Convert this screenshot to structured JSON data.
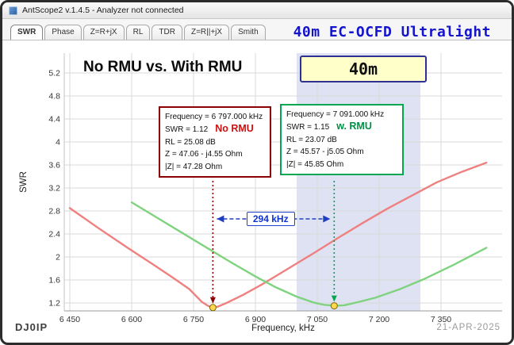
{
  "window": {
    "title_bar": {
      "title": "AntScope2 v.1.4.5 - Analyzer not connected",
      "icon": "antscope-app-icon"
    },
    "footer": {
      "left": "DJ0IP",
      "right": "21-APR-2025"
    }
  },
  "tabs": {
    "items": [
      {
        "label": "SWR",
        "active": true
      },
      {
        "label": "Phase",
        "active": false
      },
      {
        "label": "Z=R+jX",
        "active": false
      },
      {
        "label": "RL",
        "active": false
      },
      {
        "label": "TDR",
        "active": false
      },
      {
        "label": "Z=R||+jX",
        "active": false
      },
      {
        "label": "Smith",
        "active": false
      }
    ]
  },
  "header": {
    "title": "40m EC-OCFD Ultralight",
    "color": "#1414cc"
  },
  "overlay": {
    "headline": "No RMU vs. With RMU",
    "marker_boxes": [
      {
        "name": "no-rmu",
        "accent": "#8b0000",
        "tag": "No RMU",
        "tag_color": "#cc1111",
        "frequency": "Frequency = 6 797.000 kHz",
        "swr": "SWR = 1.12",
        "rl": "RL = 25.08 dB",
        "z": "Z = 47.06 - j4.55 Ohm",
        "zmag": "|Z| = 47.28 Ohm"
      },
      {
        "name": "w-rmu",
        "accent": "#00a651",
        "tag": "w. RMU",
        "tag_color": "#009045",
        "frequency": "Frequency = 7 091.000 kHz",
        "swr": "SWR = 1.15",
        "rl": "RL = 23.07 dB",
        "z": "Z = 45.57 - j5.05 Ohm",
        "zmag": "|Z| = 45.85 Ohm"
      }
    ]
  },
  "chart_data": {
    "type": "line",
    "title": "40m EC-OCFD Ultralight",
    "xlabel": "Frequency, kHz",
    "ylabel": "SWR",
    "xlim": [
      6400,
      7480
    ],
    "ylim": [
      1.0,
      5.5
    ],
    "grid": true,
    "x_ticks": [
      6450,
      6600,
      6750,
      6900,
      7050,
      7200,
      7350
    ],
    "x_tick_labels": [
      "6 450",
      "6 600",
      "6 750",
      "6 900",
      "7 050",
      "7 200",
      "7 350"
    ],
    "y_ticks": [
      1.2,
      1.6,
      2.0,
      2.4,
      2.8,
      3.2,
      3.6,
      4.0,
      4.4,
      4.8,
      5.2
    ],
    "y_tick_labels": [
      "1.2",
      "1.6",
      "2",
      "2.4",
      "2.8",
      "3.2",
      "3.6",
      "4",
      "4.4",
      "4.8",
      "5.2"
    ],
    "band": {
      "from_khz": 7000,
      "to_khz": 7300,
      "color": "#dfe2f2",
      "label": "40m"
    },
    "series": [
      {
        "name": "No RMU",
        "color": "#ef8080",
        "min_marker": {
          "freq_khz": 6797,
          "swr": 1.12
        },
        "points": [
          [
            6450,
            2.85
          ],
          [
            6520,
            2.5
          ],
          [
            6590,
            2.16
          ],
          [
            6650,
            1.88
          ],
          [
            6700,
            1.64
          ],
          [
            6740,
            1.44
          ],
          [
            6770,
            1.22
          ],
          [
            6785,
            1.15
          ],
          [
            6797,
            1.12
          ],
          [
            6810,
            1.14
          ],
          [
            6830,
            1.2
          ],
          [
            6870,
            1.34
          ],
          [
            6920,
            1.54
          ],
          [
            6980,
            1.8
          ],
          [
            7040,
            2.06
          ],
          [
            7100,
            2.33
          ],
          [
            7160,
            2.59
          ],
          [
            7220,
            2.84
          ],
          [
            7280,
            3.07
          ],
          [
            7340,
            3.3
          ],
          [
            7400,
            3.48
          ],
          [
            7460,
            3.64
          ]
        ]
      },
      {
        "name": "w. RMU",
        "color": "#7fd37f",
        "min_marker": {
          "freq_khz": 7091,
          "swr": 1.15
        },
        "points": [
          [
            6600,
            2.95
          ],
          [
            6660,
            2.69
          ],
          [
            6720,
            2.43
          ],
          [
            6780,
            2.17
          ],
          [
            6840,
            1.91
          ],
          [
            6900,
            1.66
          ],
          [
            6950,
            1.47
          ],
          [
            7000,
            1.31
          ],
          [
            7040,
            1.21
          ],
          [
            7065,
            1.17
          ],
          [
            7091,
            1.15
          ],
          [
            7115,
            1.16
          ],
          [
            7140,
            1.2
          ],
          [
            7190,
            1.29
          ],
          [
            7250,
            1.44
          ],
          [
            7310,
            1.62
          ],
          [
            7380,
            1.86
          ],
          [
            7460,
            2.16
          ]
        ]
      }
    ],
    "delta": {
      "from_khz": 6797,
      "to_khz": 7091,
      "label": "294 kHz",
      "color": "#1f3fbf"
    }
  }
}
